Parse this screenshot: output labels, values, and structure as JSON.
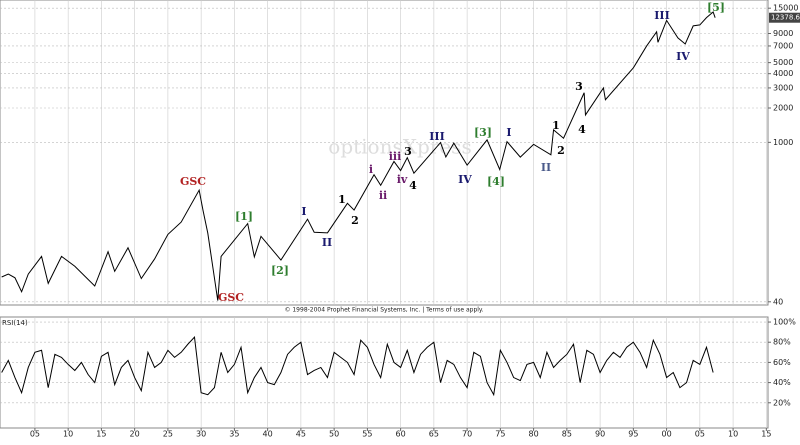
{
  "chart_data": [
    {
      "type": "line",
      "log": true,
      "grid": true,
      "color": "#000000",
      "watermark": "optionsXpress",
      "source": "© 1998-2004 Prophet Financial Systems, Inc. | Terms of use apply.",
      "xlim": [
        1899.75,
        2015.25
      ],
      "ylim": [
        37.5,
        17700
      ],
      "yticks": [
        40,
        1000,
        2000,
        3000,
        4000,
        5000,
        7000,
        9000,
        15000
      ],
      "x": [
        1900,
        1901,
        1902,
        1903,
        1904,
        1906,
        1907,
        1909,
        1911,
        1914,
        1916,
        1917,
        1919,
        1921,
        1923,
        1925,
        1927,
        1929.7,
        1930.3,
        1931,
        1932.5,
        1933,
        1937,
        1938,
        1939,
        1942,
        1946,
        1947,
        1949,
        1952,
        1953,
        1956,
        1957,
        1959,
        1960,
        1961,
        1962,
        1966,
        1966.8,
        1968,
        1970,
        1973,
        1974.9,
        1976,
        1978,
        1980,
        1982.6,
        1983,
        1984.5,
        1987.6,
        1987.8,
        1990.5,
        1990.8,
        1995,
        1997,
        1998.5,
        1998.7,
        2000,
        2001.7,
        2002.8,
        2004,
        2005,
        2006,
        2007,
        2007.3
      ],
      "values": [
        66,
        70,
        65,
        49,
        70,
        100,
        58,
        100,
        82,
        55,
        110,
        74,
        119,
        64,
        95,
        156,
        200,
        381,
        250,
        160,
        41,
        100,
        194,
        99,
        150,
        93,
        212,
        163,
        161,
        292,
        255,
        520,
        420,
        680,
        566,
        734,
        536,
        995,
        744,
        985,
        631,
        1051,
        578,
        1014,
        742,
        960,
        777,
        1287,
        1087,
        2722,
        1739,
        2999,
        2365,
        4500,
        7000,
        9300,
        7539,
        11722,
        8236,
        7286,
        10500,
        10700,
        12400,
        13900,
        12378.6
      ],
      "annotations": [
        {
          "text": "GSC",
          "color": "#b22222"
        },
        {
          "text": "GSC",
          "color": "#b22222"
        },
        {
          "text": "[1]",
          "color": "#2e7d2e"
        },
        {
          "text": "[2]",
          "color": "#2e7d2e"
        },
        {
          "text": "I",
          "color": "#1a1a6e"
        },
        {
          "text": "II",
          "color": "#1a1a6e"
        },
        {
          "text": "1",
          "color": "#000000"
        },
        {
          "text": "2",
          "color": "#000000"
        },
        {
          "text": "i",
          "color": "#6a1a6a"
        },
        {
          "text": "ii",
          "color": "#6a1a6a"
        },
        {
          "text": "iii",
          "color": "#6a1a6a"
        },
        {
          "text": "iv",
          "color": "#6a1a6a"
        },
        {
          "text": "3",
          "color": "#000000"
        },
        {
          "text": "4",
          "color": "#000000"
        },
        {
          "text": "III",
          "color": "#1a1a6e"
        },
        {
          "text": "IV",
          "color": "#1a1a6e"
        },
        {
          "text": "[3]",
          "color": "#2e7d2e"
        },
        {
          "text": "[4]",
          "color": "#2e7d2e"
        },
        {
          "text": "I",
          "color": "#1a1a6e"
        },
        {
          "text": "II",
          "color": "#4a5a8a"
        },
        {
          "text": "1",
          "color": "#000000"
        },
        {
          "text": "2",
          "color": "#000000"
        },
        {
          "text": "3",
          "color": "#000000"
        },
        {
          "text": "4",
          "color": "#000000"
        },
        {
          "text": "III",
          "color": "#1a1a6e"
        },
        {
          "text": "IV",
          "color": "#1a1a6e"
        },
        {
          "text": "[5]",
          "color": "#2e7d2e"
        }
      ]
    },
    {
      "type": "line",
      "title": "RSI(14)",
      "grid": true,
      "color": "#000000",
      "xlim": [
        1899.75,
        2015.25
      ],
      "ylim": [
        -5,
        105
      ],
      "yticks": [
        {
          "value": 20,
          "label": "20%"
        },
        {
          "value": 40,
          "label": "40%"
        },
        {
          "value": 60,
          "label": "60%"
        },
        {
          "value": 80,
          "label": "80%"
        },
        {
          "value": 100,
          "label": "100%"
        }
      ],
      "xticks": [
        {
          "value": 1905,
          "label": "05"
        },
        {
          "value": 1910,
          "label": "10"
        },
        {
          "value": 1915,
          "label": "15"
        },
        {
          "value": 1920,
          "label": "20"
        },
        {
          "value": 1925,
          "label": "25"
        },
        {
          "value": 1930,
          "label": "30"
        },
        {
          "value": 1935,
          "label": "35"
        },
        {
          "value": 1940,
          "label": "40"
        },
        {
          "value": 1945,
          "label": "45"
        },
        {
          "value": 1950,
          "label": "50"
        },
        {
          "value": 1955,
          "label": "55"
        },
        {
          "value": 1960,
          "label": "60"
        },
        {
          "value": 1965,
          "label": "65"
        },
        {
          "value": 1970,
          "label": "70"
        },
        {
          "value": 1975,
          "label": "75"
        },
        {
          "value": 1980,
          "label": "80"
        },
        {
          "value": 1985,
          "label": "85"
        },
        {
          "value": 1990,
          "label": "90"
        },
        {
          "value": 1995,
          "label": "95"
        },
        {
          "value": 2000,
          "label": "00"
        },
        {
          "value": 2005,
          "label": "05"
        },
        {
          "value": 2010,
          "label": "10"
        },
        {
          "value": 2015,
          "label": "15"
        }
      ],
      "x": [
        1900,
        1901,
        1902,
        1903,
        1904,
        1905,
        1906,
        1907,
        1908,
        1909,
        1910,
        1911,
        1912,
        1913,
        1914,
        1915,
        1916,
        1917,
        1918,
        1919,
        1920,
        1921,
        1922,
        1923,
        1924,
        1925,
        1926,
        1927,
        1928,
        1929,
        1930,
        1931,
        1932,
        1933,
        1934,
        1935,
        1936,
        1937,
        1938,
        1939,
        1940,
        1941,
        1942,
        1943,
        1944,
        1945,
        1946,
        1947,
        1948,
        1949,
        1950,
        1951,
        1952,
        1953,
        1954,
        1955,
        1956,
        1957,
        1958,
        1959,
        1960,
        1961,
        1962,
        1963,
        1964,
        1965,
        1966,
        1967,
        1968,
        1969,
        1970,
        1971,
        1972,
        1973,
        1974,
        1975,
        1976,
        1977,
        1978,
        1979,
        1980,
        1981,
        1982,
        1983,
        1984,
        1985,
        1986,
        1987,
        1988,
        1989,
        1990,
        1991,
        1992,
        1993,
        1994,
        1995,
        1996,
        1997,
        1998,
        1999,
        2000,
        2001,
        2002,
        2003,
        2004,
        2005,
        2006,
        2007
      ],
      "values": [
        50,
        62,
        45,
        30,
        55,
        70,
        72,
        35,
        68,
        65,
        58,
        52,
        60,
        48,
        40,
        66,
        70,
        38,
        55,
        62,
        45,
        32,
        70,
        55,
        60,
        72,
        65,
        70,
        78,
        85,
        30,
        28,
        35,
        70,
        50,
        58,
        75,
        30,
        45,
        55,
        40,
        38,
        50,
        68,
        75,
        80,
        48,
        52,
        55,
        45,
        70,
        65,
        60,
        48,
        82,
        75,
        58,
        45,
        78,
        60,
        55,
        72,
        50,
        68,
        75,
        80,
        40,
        62,
        58,
        45,
        35,
        70,
        66,
        40,
        28,
        72,
        60,
        45,
        42,
        58,
        60,
        45,
        70,
        55,
        62,
        68,
        78,
        40,
        72,
        68,
        50,
        62,
        70,
        65,
        75,
        80,
        70,
        55,
        82,
        68,
        45,
        50,
        35,
        40,
        62,
        58,
        75,
        50
      ]
    }
  ]
}
